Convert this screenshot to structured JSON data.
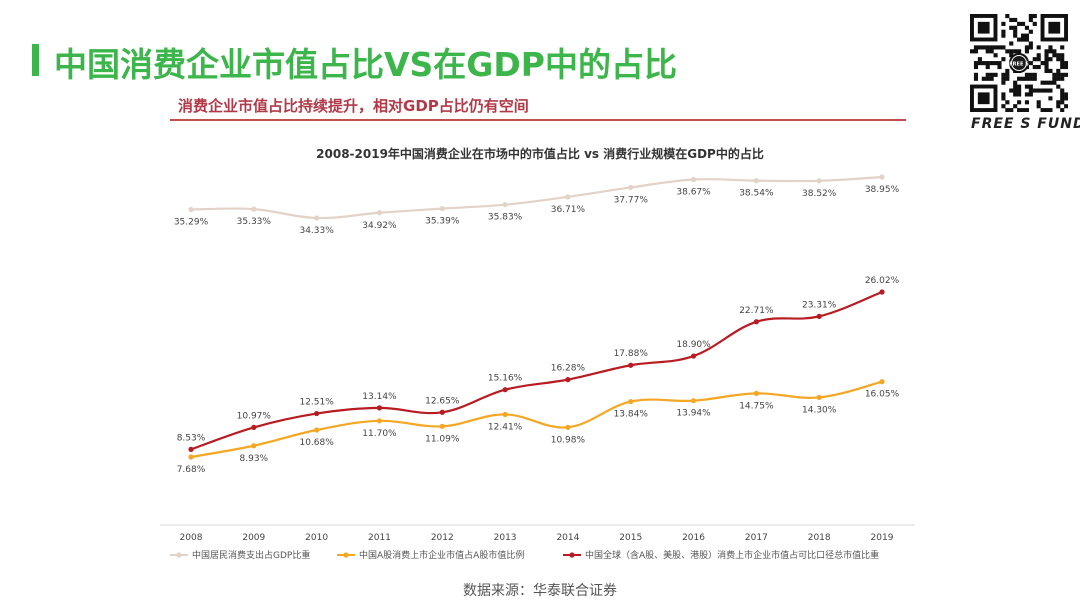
{
  "page": {
    "title": "中国消费企业市值占比VS在GDP中的占比",
    "headline": "消费企业市值占比持续提升，相对GDP占比仍有空间",
    "source": "数据来源：华泰联合证券",
    "brand": "FREE S FUND",
    "qr_badge": "FREE S"
  },
  "colors": {
    "accent": "#3cb54a",
    "headline": "#b23a48",
    "series_gdp": "#e2d2c8",
    "series_a_share": "#f5a623",
    "series_global": "#b81c22"
  },
  "chart_data": {
    "type": "line",
    "title": "2008-2019年中国消费企业在市场中的市值占比 vs 消费行业规模在GDP中的占比",
    "categories": [
      "2008",
      "2009",
      "2010",
      "2011",
      "2012",
      "2013",
      "2014",
      "2015",
      "2016",
      "2017",
      "2018",
      "2019"
    ],
    "xlabel": "",
    "ylabel": "",
    "ylim": [
      0,
      45
    ],
    "grid": false,
    "legend_position": "bottom",
    "series": [
      {
        "name": "中国居民消费支出占GDP比重",
        "values": [
          35.29,
          35.33,
          34.33,
          34.92,
          35.39,
          35.83,
          36.71,
          37.77,
          38.67,
          38.54,
          38.52,
          38.95
        ],
        "labels": [
          "35.29%",
          "35.33%",
          "34.33%",
          "34.92%",
          "35.39%",
          "35.83%",
          "36.71%",
          "37.77%",
          "38.67%",
          "38.54%",
          "38.52%",
          "38.95%"
        ],
        "label_position": "below",
        "color": "#e2d2c8"
      },
      {
        "name": "中国A股消费上市企业市值占A股市值比例",
        "values": [
          7.68,
          8.93,
          10.68,
          11.7,
          11.09,
          12.41,
          10.98,
          13.84,
          13.94,
          14.75,
          14.3,
          16.05
        ],
        "labels": [
          "7.68%",
          "8.93%",
          "10.68%",
          "11.70%",
          "11.09%",
          "12.41%",
          "10.98%",
          "13.84%",
          "13.94%",
          "14.75%",
          "14.30%",
          "16.05%"
        ],
        "label_position": "below",
        "color": "#f5a623"
      },
      {
        "name": "中国全球（含A股、美股、港股）消费上市企业市值占可比口径总市值比重",
        "values": [
          8.53,
          10.97,
          12.51,
          13.14,
          12.65,
          15.16,
          16.28,
          17.88,
          18.9,
          22.71,
          23.31,
          26.02
        ],
        "labels": [
          "8.53%",
          "10.97%",
          "12.51%",
          "13.14%",
          "12.65%",
          "15.16%",
          "16.28%",
          "17.88%",
          "18.90%",
          "22.71%",
          "23.31%",
          "26.02%"
        ],
        "label_position": "above",
        "color": "#b81c22"
      }
    ]
  }
}
